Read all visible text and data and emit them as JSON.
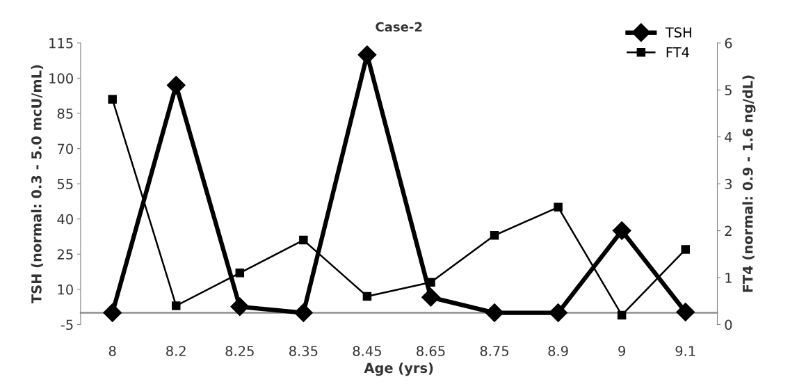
{
  "chart_data": {
    "type": "line",
    "title": "Case-2",
    "xlabel": "Age (yrs)",
    "ylabel": "TSH (normal: 0.3 - 5.0 mcU/mL)",
    "y2label": "FT4 (normal: 0.9 - 1.6 ng/dL)",
    "categories": [
      "8",
      "8.2",
      "8.25",
      "8.35",
      "8.45",
      "8.65",
      "8.75",
      "8.9",
      "9",
      "9.1"
    ],
    "series": [
      {
        "name": "TSH",
        "color": "#000000",
        "marker": "diamond",
        "values": [
          0,
          97,
          2.6,
          0,
          110,
          6.6,
          0,
          0,
          35,
          0.3
        ]
      },
      {
        "name": "FT4",
        "color": "#000000",
        "marker": "square",
        "axis": "y2",
        "values": [
          4.8,
          0.4,
          1.1,
          1.8,
          0.6,
          0.9,
          1.9,
          2.5,
          0.2,
          1.6
        ]
      }
    ],
    "ylim": [
      -5,
      115
    ],
    "yticks": [
      -5,
      10,
      25,
      40,
      55,
      70,
      85,
      100,
      115
    ],
    "y2lim": [
      0,
      6
    ],
    "y2ticks": [
      0,
      1,
      2,
      3,
      4,
      5,
      6
    ],
    "grid": false,
    "legend": "top right"
  }
}
